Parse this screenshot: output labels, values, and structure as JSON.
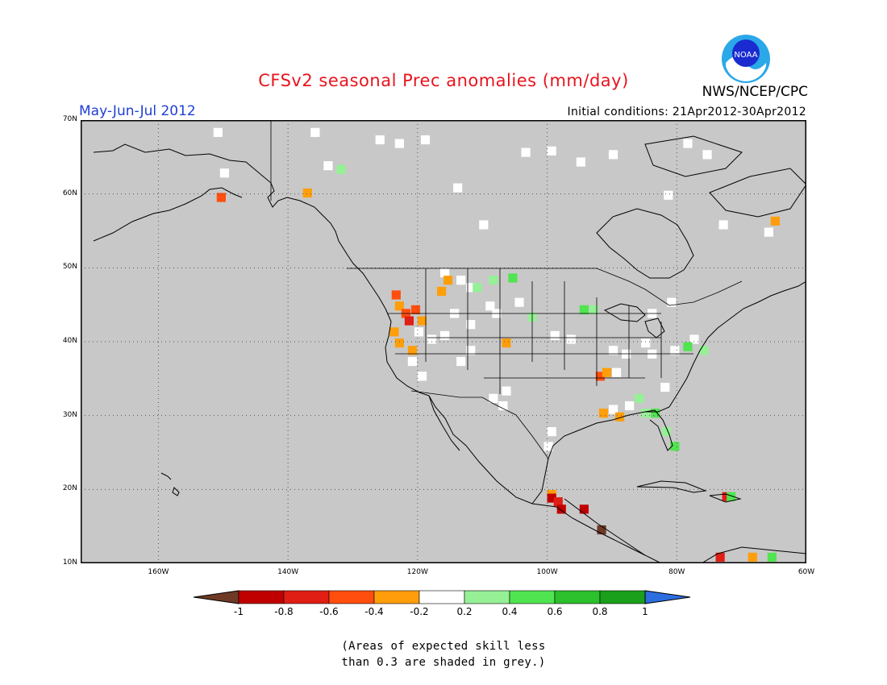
{
  "title": "CFSv2 seasonal Prec anomalies (mm/day)",
  "period": "May-Jun-Jul 2012",
  "initial_conditions": "Initial conditions: 21Apr2012-30Apr2012",
  "agency": "NWS/NCEP/CPC",
  "logo_text": "NOAA",
  "map": {
    "lon_range": [
      -172,
      -60
    ],
    "lat_range": [
      10,
      70
    ],
    "lat_ticks": [
      "70N",
      "60N",
      "50N",
      "40N",
      "30N",
      "20N",
      "10N"
    ],
    "lon_ticks": [
      "160W",
      "140W",
      "120W",
      "100W",
      "80W",
      "60W"
    ],
    "lat_tick_values": [
      70,
      60,
      50,
      40,
      30,
      20,
      10
    ],
    "lon_tick_values": [
      -160,
      -140,
      -120,
      -100,
      -80,
      -60
    ],
    "grid": "dotted",
    "land_color": "#c8c8c8",
    "background": "#c8c8c8"
  },
  "colorbar": {
    "labels": [
      "-1",
      "-0.8",
      "-0.6",
      "-0.4",
      "-0.2",
      "0.2",
      "0.4",
      "0.6",
      "0.8",
      "1"
    ],
    "colors": [
      "#6e3a26",
      "#c00000",
      "#e01e14",
      "#ff4e0e",
      "#ff9e0a",
      "#ffffff",
      "#96f096",
      "#50e450",
      "#2cc02c",
      "#1aa01a",
      "#2c6ee0"
    ]
  },
  "note_lines": [
    "(Areas of expected skill less",
    "than 0.3 are shaded in grey.)"
  ],
  "anomaly_cells": [
    {
      "lon": -150.5,
      "lat": 59.7,
      "color": "#ff4e0e"
    },
    {
      "lon": -137.2,
      "lat": 60.3,
      "color": "#ff9e0a"
    },
    {
      "lon": -123.5,
      "lat": 46.5,
      "color": "#ff4e0e"
    },
    {
      "lon": -123.0,
      "lat": 45.0,
      "color": "#ff9e0a"
    },
    {
      "lon": -122.0,
      "lat": 44.0,
      "color": "#ff4e0e"
    },
    {
      "lon": -121.5,
      "lat": 43.0,
      "color": "#e01e14"
    },
    {
      "lon": -120.5,
      "lat": 44.5,
      "color": "#ff4e0e"
    },
    {
      "lon": -119.5,
      "lat": 43.0,
      "color": "#ff9e0a"
    },
    {
      "lon": -123.8,
      "lat": 41.5,
      "color": "#ff9e0a"
    },
    {
      "lon": -123.0,
      "lat": 40.0,
      "color": "#ff9e0a"
    },
    {
      "lon": -121.0,
      "lat": 39.0,
      "color": "#ff9e0a"
    },
    {
      "lon": -115.5,
      "lat": 48.5,
      "color": "#ff9e0a"
    },
    {
      "lon": -116.5,
      "lat": 47.0,
      "color": "#ff9e0a"
    },
    {
      "lon": -92.0,
      "lat": 35.5,
      "color": "#ff4e0e"
    },
    {
      "lon": -91.0,
      "lat": 36.0,
      "color": "#ff9e0a"
    },
    {
      "lon": -91.5,
      "lat": 30.5,
      "color": "#ff9e0a"
    },
    {
      "lon": -89.0,
      "lat": 30.0,
      "color": "#ff9e0a"
    },
    {
      "lon": -99.5,
      "lat": 19.5,
      "color": "#ff9e0a"
    },
    {
      "lon": -99.5,
      "lat": 19.0,
      "color": "#c00000"
    },
    {
      "lon": -98.5,
      "lat": 18.5,
      "color": "#e01e14"
    },
    {
      "lon": -98.0,
      "lat": 17.5,
      "color": "#c00000"
    },
    {
      "lon": -94.5,
      "lat": 17.5,
      "color": "#c00000"
    },
    {
      "lon": -91.8,
      "lat": 14.7,
      "color": "#6e3a26"
    },
    {
      "lon": -72.5,
      "lat": 19.2,
      "color": "#e01e14"
    },
    {
      "lon": -73.5,
      "lat": 11.0,
      "color": "#e01e14"
    },
    {
      "lon": -65.0,
      "lat": 56.5,
      "color": "#ff9e0a"
    },
    {
      "lon": -106.5,
      "lat": 40.0,
      "color": "#ff9e0a"
    },
    {
      "lon": -132.0,
      "lat": 63.5,
      "color": "#96f096"
    },
    {
      "lon": -111.0,
      "lat": 47.5,
      "color": "#96f096"
    },
    {
      "lon": -108.5,
      "lat": 48.5,
      "color": "#96f096"
    },
    {
      "lon": -105.5,
      "lat": 48.8,
      "color": "#50e450"
    },
    {
      "lon": -102.5,
      "lat": 43.5,
      "color": "#96f096"
    },
    {
      "lon": -94.5,
      "lat": 44.5,
      "color": "#50e450"
    },
    {
      "lon": -93.0,
      "lat": 44.5,
      "color": "#96f096"
    },
    {
      "lon": -85.0,
      "lat": 30.5,
      "color": "#96f096"
    },
    {
      "lon": -83.5,
      "lat": 30.5,
      "color": "#50e450"
    },
    {
      "lon": -81.8,
      "lat": 28.0,
      "color": "#96f096"
    },
    {
      "lon": -80.5,
      "lat": 26.0,
      "color": "#50e450"
    },
    {
      "lon": -76.0,
      "lat": 39.0,
      "color": "#96f096"
    },
    {
      "lon": -78.5,
      "lat": 39.5,
      "color": "#50e450"
    },
    {
      "lon": -71.8,
      "lat": 19.2,
      "color": "#50e450"
    },
    {
      "lon": -68.5,
      "lat": 11.0,
      "color": "#ff9e0a"
    },
    {
      "lon": -65.5,
      "lat": 11.0,
      "color": "#50e450"
    },
    {
      "lon": -86.0,
      "lat": 32.5,
      "color": "#96f096"
    }
  ],
  "white_cells": [
    {
      "lon": -151.0,
      "lat": 68.5
    },
    {
      "lon": -136.0,
      "lat": 68.5
    },
    {
      "lon": -126.0,
      "lat": 67.5
    },
    {
      "lon": -119.0,
      "lat": 67.5
    },
    {
      "lon": -123.0,
      "lat": 67.0
    },
    {
      "lon": -150.0,
      "lat": 63.0
    },
    {
      "lon": -134.0,
      "lat": 64.0
    },
    {
      "lon": -114.0,
      "lat": 61.0
    },
    {
      "lon": -110.0,
      "lat": 56.0
    },
    {
      "lon": -103.5,
      "lat": 65.8
    },
    {
      "lon": -99.5,
      "lat": 66.0
    },
    {
      "lon": -95.0,
      "lat": 64.5
    },
    {
      "lon": -90.0,
      "lat": 65.5
    },
    {
      "lon": -81.5,
      "lat": 60.0
    },
    {
      "lon": -73.0,
      "lat": 56.0
    },
    {
      "lon": -66.0,
      "lat": 55.0
    },
    {
      "lon": -78.5,
      "lat": 67.0
    },
    {
      "lon": -75.5,
      "lat": 65.5
    },
    {
      "lon": -84.0,
      "lat": 44.0
    },
    {
      "lon": -116.0,
      "lat": 49.5
    },
    {
      "lon": -113.5,
      "lat": 48.5
    },
    {
      "lon": -112.0,
      "lat": 47.5
    },
    {
      "lon": -109.0,
      "lat": 45.0
    },
    {
      "lon": -108.0,
      "lat": 44.0
    },
    {
      "lon": -104.5,
      "lat": 45.5
    },
    {
      "lon": -114.5,
      "lat": 44.0
    },
    {
      "lon": -112.0,
      "lat": 42.5
    },
    {
      "lon": -112.0,
      "lat": 39.0
    },
    {
      "lon": -113.5,
      "lat": 37.5
    },
    {
      "lon": -116.0,
      "lat": 41.0
    },
    {
      "lon": -118.0,
      "lat": 40.5
    },
    {
      "lon": -120.0,
      "lat": 41.5
    },
    {
      "lon": -121.0,
      "lat": 37.5
    },
    {
      "lon": -119.5,
      "lat": 35.5
    },
    {
      "lon": -108.5,
      "lat": 32.5
    },
    {
      "lon": -106.5,
      "lat": 33.5
    },
    {
      "lon": -107.0,
      "lat": 31.5
    },
    {
      "lon": -99.0,
      "lat": 41.0
    },
    {
      "lon": -96.5,
      "lat": 40.5
    },
    {
      "lon": -99.5,
      "lat": 28.0
    },
    {
      "lon": -100.0,
      "lat": 26.0
    },
    {
      "lon": -90.0,
      "lat": 39.0
    },
    {
      "lon": -88.0,
      "lat": 38.5
    },
    {
      "lon": -85.0,
      "lat": 40.0
    },
    {
      "lon": -84.0,
      "lat": 38.5
    },
    {
      "lon": -89.5,
      "lat": 36.0
    },
    {
      "lon": -90.0,
      "lat": 31.0
    },
    {
      "lon": -87.5,
      "lat": 31.5
    },
    {
      "lon": -82.0,
      "lat": 34.0
    },
    {
      "lon": -80.5,
      "lat": 39.0
    },
    {
      "lon": -77.5,
      "lat": 40.5
    },
    {
      "lon": -81.0,
      "lat": 45.5
    }
  ]
}
